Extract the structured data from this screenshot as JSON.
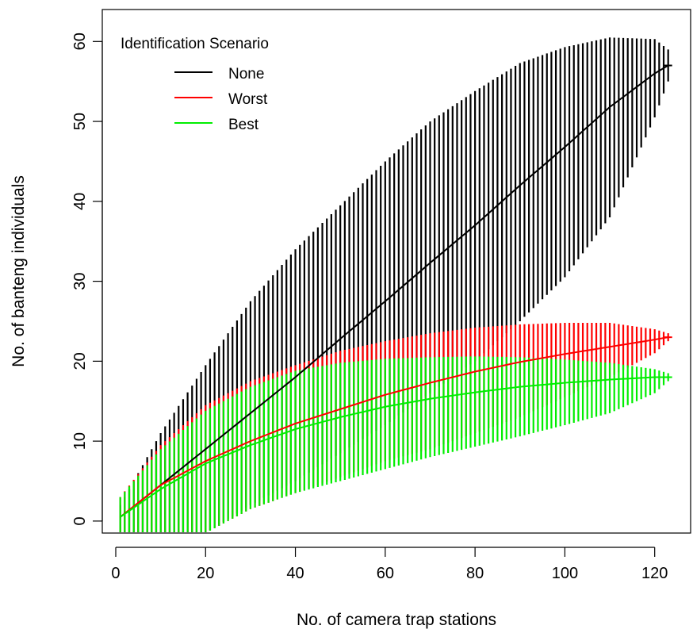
{
  "chart_data": {
    "type": "line",
    "title": "",
    "xlabel": "No. of camera trap stations",
    "ylabel": "No. of banteng individuals",
    "xlim": [
      -3,
      128
    ],
    "ylim": [
      -1.5,
      64
    ],
    "x_ticks": [
      0,
      20,
      40,
      60,
      80,
      100,
      120
    ],
    "y_ticks": [
      0,
      10,
      20,
      30,
      40,
      50,
      60
    ],
    "error_bars": true,
    "legend": {
      "title": "Identification Scenario",
      "placement": "top-left",
      "entries": [
        "None",
        "Worst",
        "Best"
      ]
    },
    "x": [
      1,
      10,
      20,
      30,
      40,
      50,
      60,
      70,
      80,
      90,
      100,
      110,
      120,
      123
    ],
    "series": [
      {
        "name": "None",
        "color": "#000000",
        "mean": [
          0.5,
          4.5,
          9.0,
          13.5,
          18.0,
          22.8,
          27.5,
          32.3,
          37.0,
          42.0,
          46.8,
          51.8,
          56.0,
          57.0
        ],
        "lower": [
          -1.5,
          -1.5,
          -1.5,
          2.0,
          5.0,
          8.5,
          12.0,
          16.0,
          20.0,
          25.0,
          30.5,
          38.0,
          50.5,
          55.0
        ],
        "upper": [
          2.0,
          11.0,
          19.5,
          27.5,
          34.0,
          39.5,
          45.0,
          50.0,
          53.8,
          57.3,
          59.3,
          60.5,
          60.3,
          59.0
        ]
      },
      {
        "name": "Worst",
        "color": "#ff0000",
        "mean": [
          0.5,
          4.5,
          7.5,
          10.0,
          12.2,
          14.0,
          15.8,
          17.3,
          18.7,
          19.9,
          20.9,
          21.8,
          22.7,
          23.0
        ],
        "lower": [
          -1.5,
          -1.5,
          -1.5,
          1.5,
          3.5,
          5.5,
          7.5,
          9.0,
          11.0,
          13.0,
          15.5,
          18.0,
          21.0,
          22.5
        ],
        "upper": [
          3.0,
          9.5,
          14.5,
          17.5,
          19.5,
          21.3,
          22.5,
          23.5,
          24.2,
          24.6,
          24.8,
          24.8,
          24.0,
          23.5
        ]
      },
      {
        "name": "Best",
        "color": "#00ee00",
        "mean": [
          0.5,
          4.0,
          7.2,
          9.5,
          11.5,
          13.0,
          14.3,
          15.3,
          16.1,
          16.8,
          17.3,
          17.7,
          18.0,
          18.0
        ],
        "lower": [
          -1.5,
          -1.5,
          -1.5,
          1.5,
          3.5,
          5.0,
          6.5,
          8.0,
          9.3,
          10.6,
          12.0,
          13.5,
          16.0,
          17.5
        ],
        "upper": [
          3.0,
          9.0,
          13.8,
          16.8,
          18.8,
          19.8,
          20.3,
          20.5,
          20.6,
          20.5,
          20.2,
          19.8,
          19.0,
          18.5
        ]
      }
    ]
  }
}
